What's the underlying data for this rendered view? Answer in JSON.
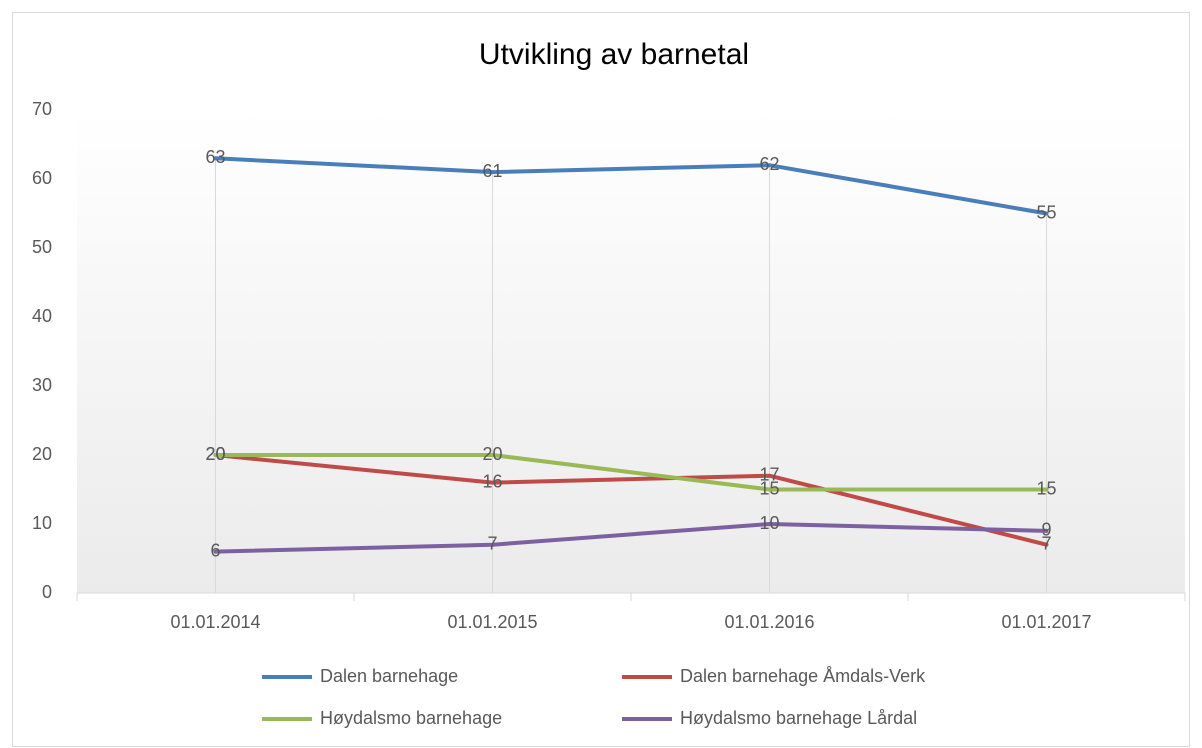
{
  "chart_data": {
    "type": "line",
    "title": "Utvikling av barnetal",
    "categories": [
      "01.01.2014",
      "01.01.2015",
      "01.01.2016",
      "01.01.2017"
    ],
    "series": [
      {
        "name": "Dalen barnehage",
        "color": "#4a7ebb",
        "values": [
          63,
          61,
          62,
          55
        ]
      },
      {
        "name": "Dalen barnehage Åmdals-Verk",
        "color": "#be4b48",
        "values": [
          20,
          16,
          17,
          7
        ]
      },
      {
        "name": "Høydalsmo barnehage",
        "color": "#98b954",
        "values": [
          20,
          20,
          15,
          15
        ]
      },
      {
        "name": "Høydalsmo barnehage Lårdal",
        "color": "#7d60a0",
        "values": [
          6,
          7,
          10,
          9
        ]
      }
    ],
    "ylim": [
      0,
      70
    ],
    "yticks": [
      0,
      10,
      20,
      30,
      40,
      50,
      60,
      70
    ],
    "drop_lines": true,
    "data_labels": true,
    "legend": "bottom"
  }
}
